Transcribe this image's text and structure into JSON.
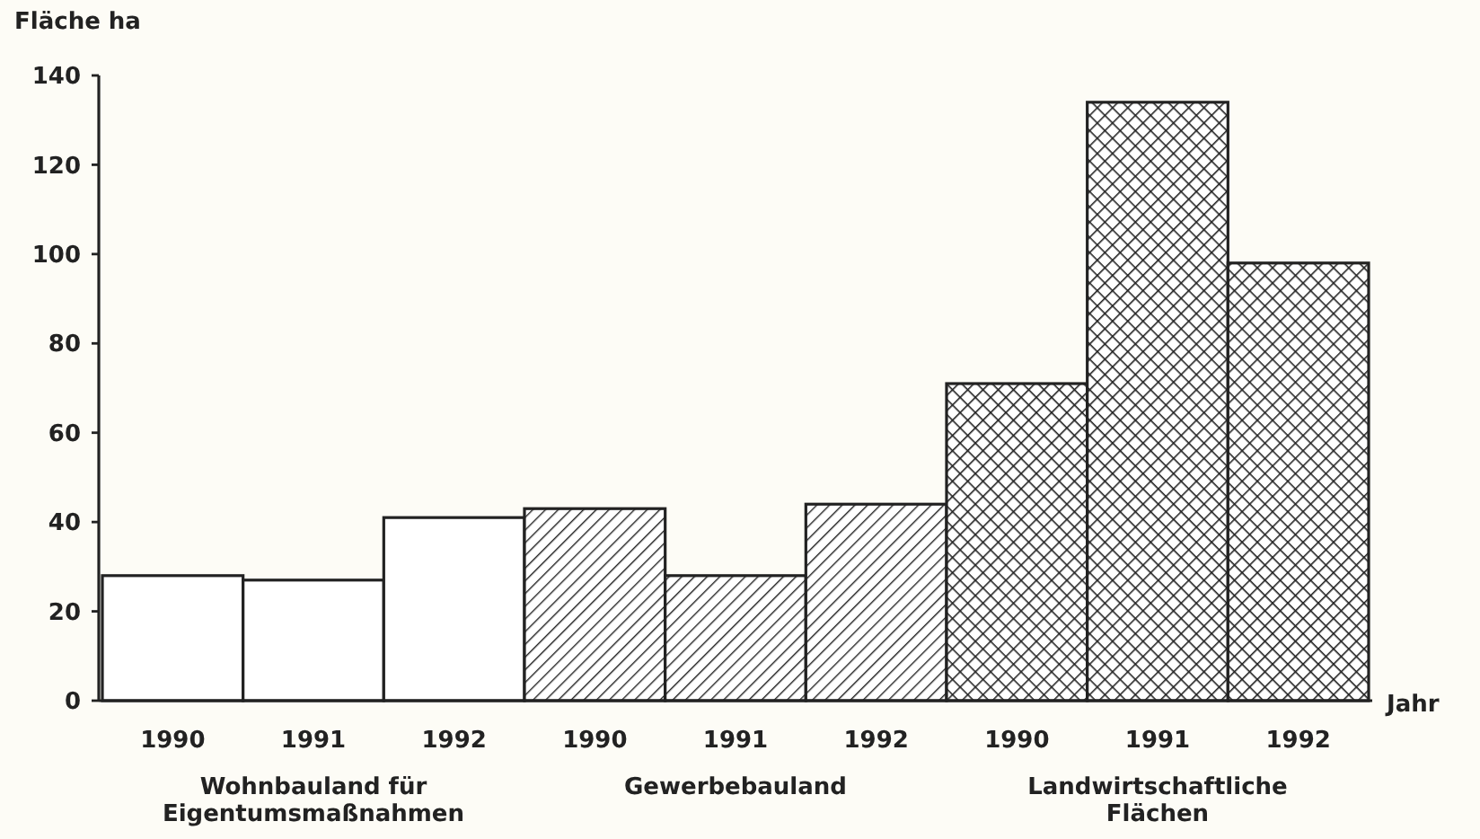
{
  "chart_data": {
    "type": "bar",
    "ylabel": "Fläche ha",
    "xlabel": "Jahr",
    "categories": [
      "1990",
      "1991",
      "1992",
      "1990",
      "1991",
      "1992",
      "1990",
      "1991",
      "1992"
    ],
    "series": [
      {
        "color": "#ffffff",
        "values": [
          28,
          27,
          41,
          null,
          null,
          null,
          null,
          null,
          null
        ]
      },
      {
        "color": "#222222",
        "values": [
          null,
          null,
          null,
          43,
          28,
          44,
          null,
          null,
          null
        ]
      },
      {
        "color": "#222222",
        "values": [
          null,
          null,
          null,
          null,
          null,
          null,
          71,
          134,
          98
        ]
      }
    ],
    "annotations": [
      "Wohnbauland für Eigentumsmaßnahmen",
      "Gewerbebauland",
      "Landwirtschaftliche Flächen"
    ],
    "ylim": [
      0,
      140
    ],
    "yticks": [
      0,
      20,
      40,
      60,
      80,
      100,
      120,
      140
    ],
    "grid": false
  }
}
